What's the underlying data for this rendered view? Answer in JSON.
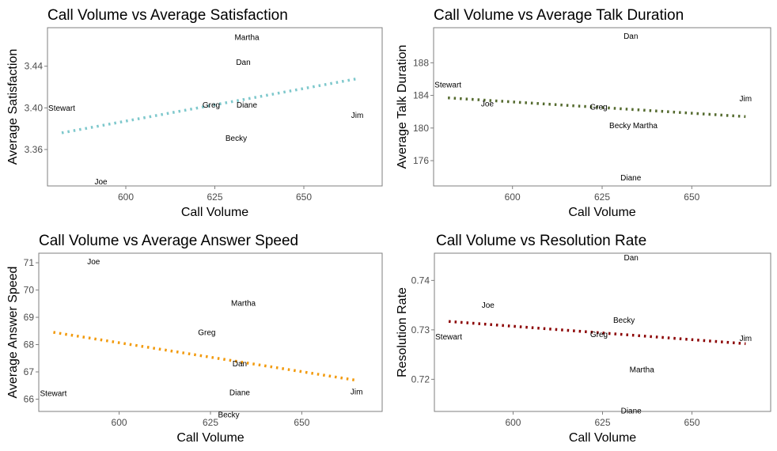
{
  "chart_data": [
    {
      "type": "scatter",
      "title": "Call Volume vs Average Satisfaction",
      "xlabel": "Call Volume",
      "ylabel": "Average Satisfaction",
      "xlim": [
        578,
        672
      ],
      "ylim": [
        3.325,
        3.477
      ],
      "x_ticks": [
        600,
        625,
        650
      ],
      "y_ticks": [
        3.36,
        3.4,
        3.44
      ],
      "y_decimals": 2,
      "grid": false,
      "trend_color": "#7ec8cc",
      "trend": {
        "x": [
          582,
          665
        ],
        "y": [
          3.376,
          3.428
        ]
      },
      "points": [
        {
          "label": "Martha",
          "x": 634,
          "y": 3.468
        },
        {
          "label": "Dan",
          "x": 633,
          "y": 3.444
        },
        {
          "label": "Stewart",
          "x": 582,
          "y": 3.4
        },
        {
          "label": "Greg",
          "x": 624,
          "y": 3.403
        },
        {
          "label": "Diane",
          "x": 634,
          "y": 3.403
        },
        {
          "label": "Jim",
          "x": 665,
          "y": 3.393
        },
        {
          "label": "Becky",
          "x": 631,
          "y": 3.371
        },
        {
          "label": "Joe",
          "x": 593,
          "y": 3.329
        }
      ]
    },
    {
      "type": "scatter",
      "title": "Call Volume vs Average Talk Duration",
      "xlabel": "Call Volume",
      "ylabel": "Average Talk Duration",
      "xlim": [
        578,
        672
      ],
      "ylim": [
        172.9,
        192.3
      ],
      "x_ticks": [
        600,
        625,
        650
      ],
      "y_ticks": [
        176,
        180,
        184,
        188
      ],
      "y_decimals": 0,
      "grid": false,
      "trend_color": "#556b2f",
      "trend": {
        "x": [
          582,
          665
        ],
        "y": [
          183.7,
          181.4
        ]
      },
      "points": [
        {
          "label": "Dan",
          "x": 633,
          "y": 191.3
        },
        {
          "label": "Stewart",
          "x": 582,
          "y": 185.3
        },
        {
          "label": "Joe",
          "x": 593,
          "y": 183.0
        },
        {
          "label": "Jim",
          "x": 665,
          "y": 183.6
        },
        {
          "label": "Greg",
          "x": 624,
          "y": 182.6
        },
        {
          "label": "Becky",
          "x": 630,
          "y": 180.3
        },
        {
          "label": "Martha",
          "x": 637,
          "y": 180.3
        },
        {
          "label": "Diane",
          "x": 633,
          "y": 173.9
        }
      ]
    },
    {
      "type": "scatter",
      "title": "Call Volume vs Average Answer Speed",
      "xlabel": "Call Volume",
      "ylabel": "Average Answer Speed",
      "xlim": [
        578,
        672
      ],
      "ylim": [
        65.55,
        71.35
      ],
      "x_ticks": [
        600,
        625,
        650
      ],
      "y_ticks": [
        66,
        67,
        68,
        69,
        70,
        71
      ],
      "y_decimals": 0,
      "grid": false,
      "trend_color": "#f29a0c",
      "trend": {
        "x": [
          582,
          665
        ],
        "y": [
          68.45,
          66.69
        ]
      },
      "points": [
        {
          "label": "Joe",
          "x": 593,
          "y": 71.05
        },
        {
          "label": "Martha",
          "x": 634,
          "y": 69.52
        },
        {
          "label": "Greg",
          "x": 624,
          "y": 68.45
        },
        {
          "label": "Dan",
          "x": 633,
          "y": 67.31
        },
        {
          "label": "Stewart",
          "x": 582,
          "y": 66.21
        },
        {
          "label": "Diane",
          "x": 633,
          "y": 66.25
        },
        {
          "label": "Jim",
          "x": 665,
          "y": 66.27
        },
        {
          "label": "Becky",
          "x": 630,
          "y": 65.44
        }
      ]
    },
    {
      "type": "scatter",
      "title": "Call Volume vs Resolution Rate",
      "xlabel": "Call Volume",
      "ylabel": "Resolution Rate",
      "xlim": [
        578,
        672
      ],
      "ylim": [
        0.7135,
        0.7455
      ],
      "x_ticks": [
        600,
        625,
        650
      ],
      "y_ticks": [
        0.72,
        0.73,
        0.74
      ],
      "y_decimals": 2,
      "grid": false,
      "trend_color": "#8b0000",
      "trend": {
        "x": [
          582,
          665
        ],
        "y": [
          0.7317,
          0.7272
        ]
      },
      "points": [
        {
          "label": "Dan",
          "x": 633,
          "y": 0.7446
        },
        {
          "label": "Joe",
          "x": 593,
          "y": 0.735
        },
        {
          "label": "Becky",
          "x": 631,
          "y": 0.732
        },
        {
          "label": "Stewart",
          "x": 582,
          "y": 0.7286
        },
        {
          "label": "Greg",
          "x": 624,
          "y": 0.7291
        },
        {
          "label": "Jim",
          "x": 665,
          "y": 0.7283
        },
        {
          "label": "Martha",
          "x": 636,
          "y": 0.722
        },
        {
          "label": "Diane",
          "x": 633,
          "y": 0.7137
        }
      ]
    }
  ]
}
